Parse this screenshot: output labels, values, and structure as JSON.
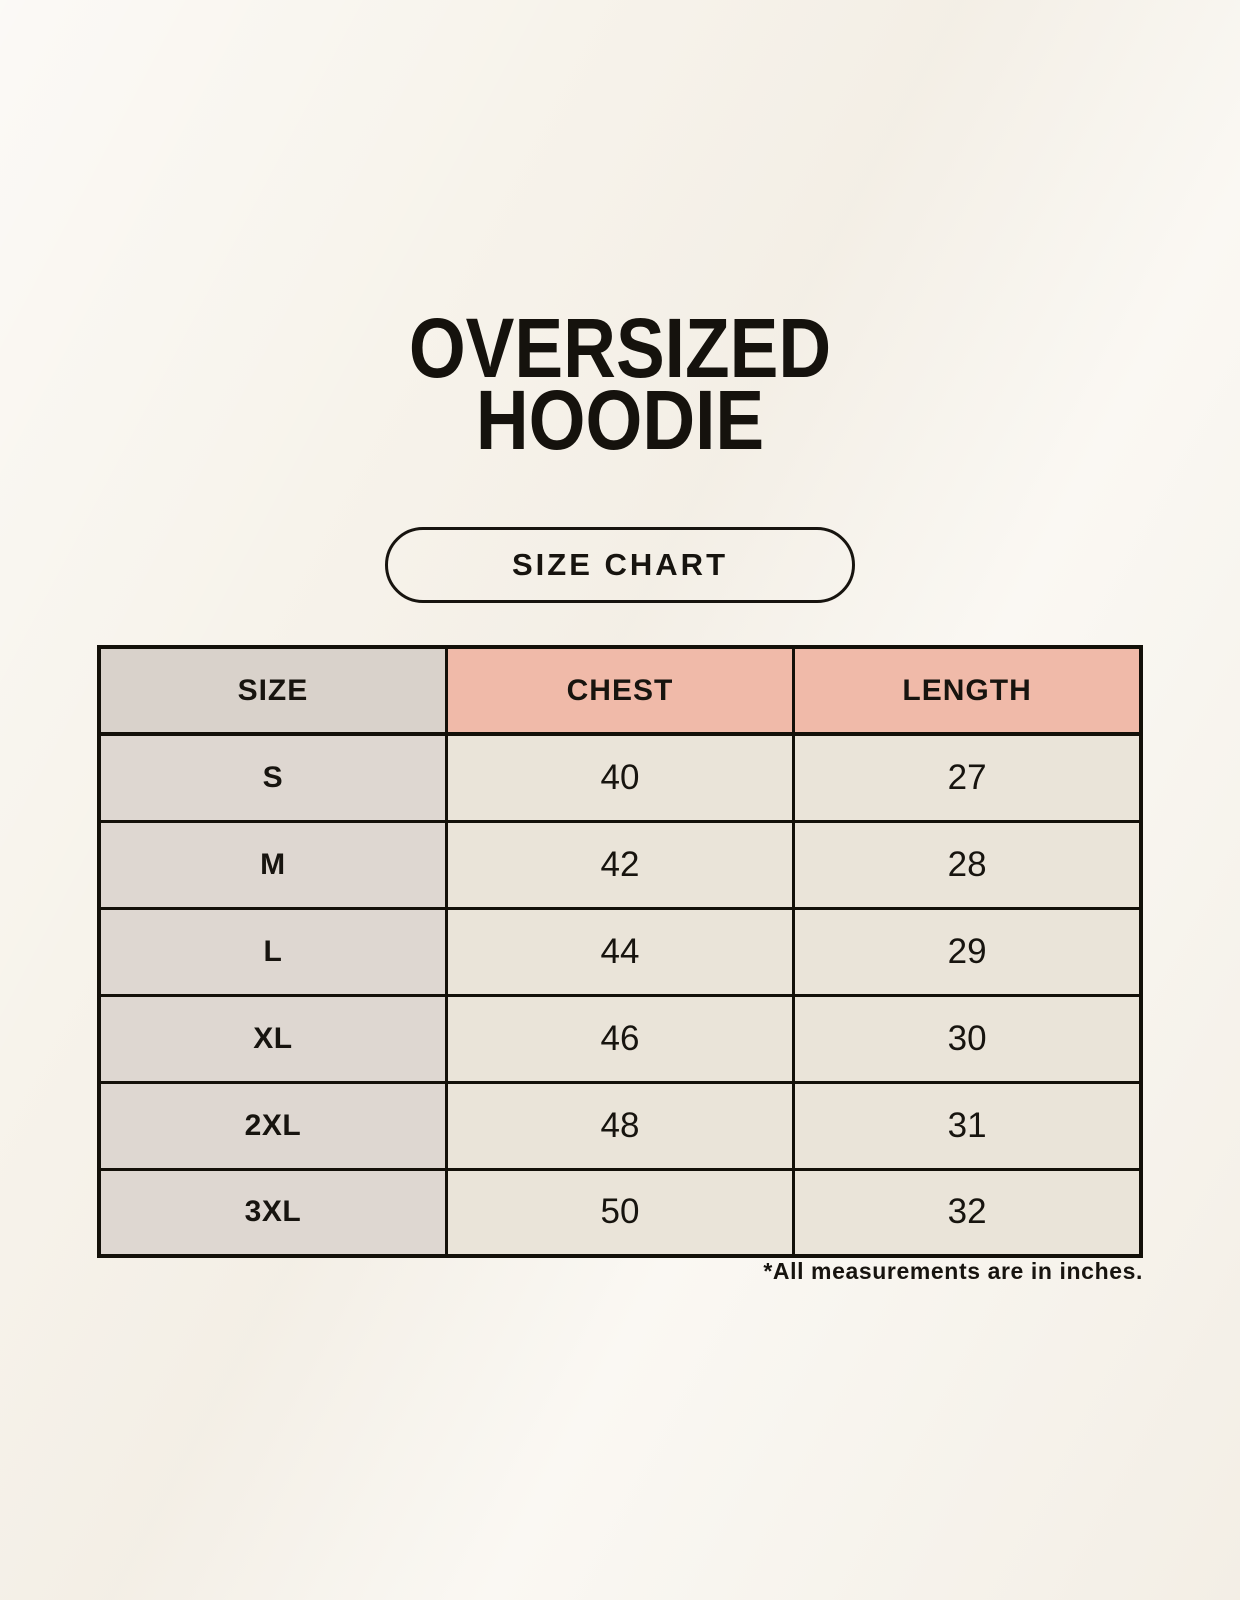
{
  "page": {
    "title_line1": "OVERSIZED",
    "title_line2": "HOODIE",
    "size_chart_label": "SIZE CHART",
    "footnote": "*All measurements are in inches."
  },
  "chart_data": {
    "type": "table",
    "title": "OVERSIZED HOODIE — SIZE CHART",
    "columns": [
      "SIZE",
      "CHEST",
      "LENGTH"
    ],
    "rows": [
      [
        "S",
        "40",
        "27"
      ],
      [
        "M",
        "42",
        "28"
      ],
      [
        "L",
        "44",
        "29"
      ],
      [
        "XL",
        "46",
        "30"
      ],
      [
        "2XL",
        "48",
        "31"
      ],
      [
        "3XL",
        "50",
        "32"
      ]
    ],
    "units": "inches"
  },
  "colors": {
    "background": "#f7f3eb",
    "border": "#131009",
    "text": "#17140f",
    "header_size_bg": "#d9d2cb",
    "header_measure_bg": "#f0baa9",
    "cell_size_bg": "#ded7d1",
    "cell_data_bg": "#eae4d9"
  }
}
